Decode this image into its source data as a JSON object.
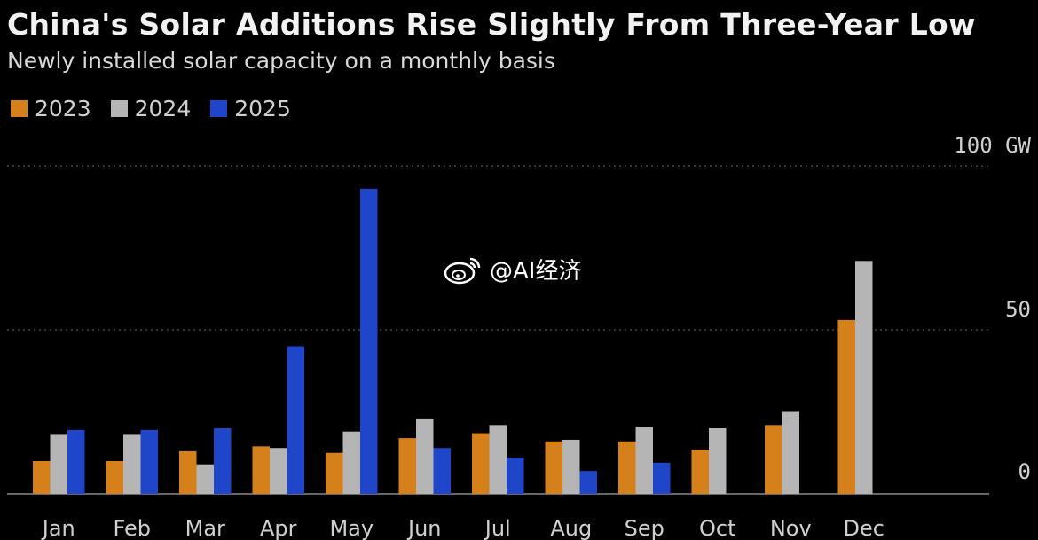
{
  "header": {
    "title": "China's Solar Additions Rise Slightly From Three-Year Low",
    "subtitle": "Newly installed solar capacity on a monthly basis"
  },
  "watermark": {
    "handle": "@AI经济",
    "icon": "weibo-icon"
  },
  "colors": {
    "2023": "#d6801c",
    "2024": "#b5b5b5",
    "2025": "#1f45c8",
    "grid": "#6b6b6b",
    "text": "#d0d0d0"
  },
  "chart_data": {
    "type": "bar",
    "title": "China's Solar Additions Rise Slightly From Three-Year Low",
    "subtitle": "Newly installed solar capacity on a monthly basis",
    "categories": [
      "Jan",
      "Feb",
      "Mar",
      "Apr",
      "May",
      "Jun",
      "Jul",
      "Aug",
      "Sep",
      "Oct",
      "Nov",
      "Dec"
    ],
    "series": [
      {
        "name": "2023",
        "values": [
          10,
          10,
          13,
          14.5,
          12.5,
          17,
          18.5,
          16,
          16,
          13.5,
          21,
          53
        ]
      },
      {
        "name": "2024",
        "values": [
          18,
          18,
          9,
          14,
          19,
          23,
          21,
          16.5,
          20.5,
          20,
          25,
          71
        ]
      },
      {
        "name": "2025",
        "values": [
          19.5,
          19.5,
          20,
          45,
          93,
          14,
          11,
          7,
          9.5,
          null,
          null,
          null
        ]
      }
    ],
    "ylim": [
      0,
      100
    ],
    "yticks": [
      0,
      50,
      100
    ],
    "ytick_labels": [
      "0",
      "50",
      "100 GW"
    ],
    "ylabel": "GW",
    "grid": true,
    "legend": "top-left"
  }
}
